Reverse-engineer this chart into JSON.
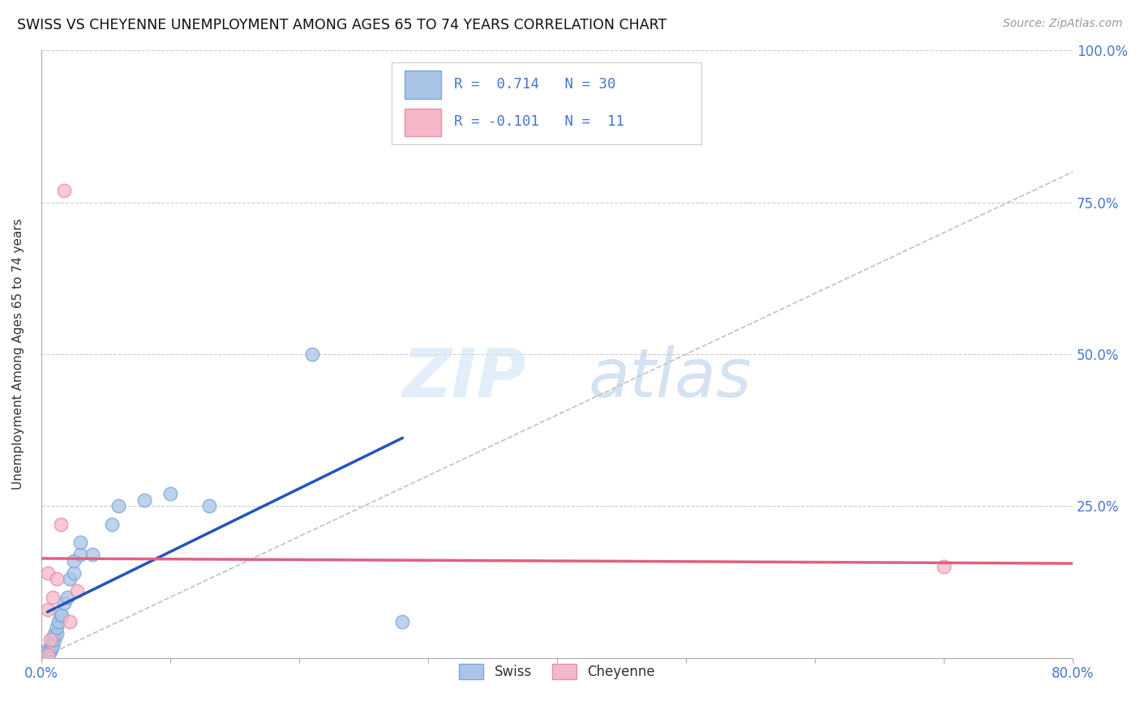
{
  "title": "SWISS VS CHEYENNE UNEMPLOYMENT AMONG AGES 65 TO 74 YEARS CORRELATION CHART",
  "source": "Source: ZipAtlas.com",
  "ylabel": "Unemployment Among Ages 65 to 74 years",
  "xlim": [
    0.0,
    0.8
  ],
  "ylim": [
    0.0,
    1.0
  ],
  "xticks": [
    0.0,
    0.1,
    0.2,
    0.3,
    0.4,
    0.5,
    0.6,
    0.7,
    0.8
  ],
  "xticklabels": [
    "0.0%",
    "",
    "",
    "",
    "",
    "",
    "",
    "",
    "80.0%"
  ],
  "yticks": [
    0.0,
    0.25,
    0.5,
    0.75,
    1.0
  ],
  "yticklabels": [
    "",
    "25.0%",
    "50.0%",
    "75.0%",
    "100.0%"
  ],
  "swiss_x": [
    0.005,
    0.005,
    0.005,
    0.007,
    0.007,
    0.008,
    0.009,
    0.009,
    0.01,
    0.01,
    0.012,
    0.012,
    0.013,
    0.015,
    0.016,
    0.018,
    0.02,
    0.022,
    0.025,
    0.025,
    0.03,
    0.03,
    0.04,
    0.055,
    0.06,
    0.08,
    0.1,
    0.13,
    0.21,
    0.28
  ],
  "swiss_y": [
    0.005,
    0.01,
    0.015,
    0.01,
    0.015,
    0.02,
    0.02,
    0.03,
    0.03,
    0.04,
    0.04,
    0.05,
    0.06,
    0.07,
    0.07,
    0.09,
    0.1,
    0.13,
    0.14,
    0.16,
    0.17,
    0.19,
    0.17,
    0.22,
    0.25,
    0.26,
    0.27,
    0.25,
    0.5,
    0.06
  ],
  "cheyenne_x": [
    0.005,
    0.005,
    0.005,
    0.007,
    0.009,
    0.012,
    0.015,
    0.018,
    0.022,
    0.028,
    0.7
  ],
  "cheyenne_y": [
    0.005,
    0.08,
    0.14,
    0.03,
    0.1,
    0.13,
    0.22,
    0.77,
    0.06,
    0.11,
    0.15
  ],
  "swiss_color": "#aac4e8",
  "cheyenne_color": "#f4b8c8",
  "swiss_edge_color": "#7aaad4",
  "cheyenne_edge_color": "#e890a8",
  "swiss_line_color": "#2255bb",
  "cheyenne_line_color": "#e06080",
  "ref_line_color": "#c0c0c0",
  "swiss_R": 0.714,
  "swiss_N": 30,
  "cheyenne_R": -0.101,
  "cheyenne_N": 11,
  "tick_color": "#4477cc",
  "watermark_zip": "ZIP",
  "watermark_atlas": "atlas",
  "background_color": "#ffffff",
  "grid_color": "#cccccc",
  "legend_edge_color": "#cccccc"
}
